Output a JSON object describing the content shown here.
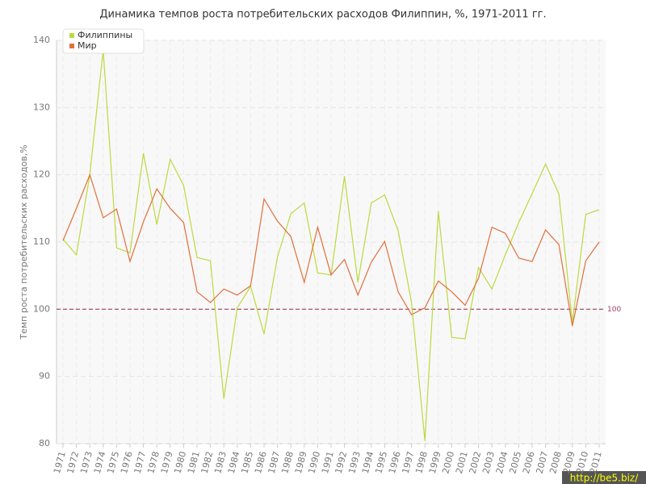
{
  "chart_data": {
    "type": "line",
    "title": "Динамика темпов роста потребительских расходов Филиппин, %, 1971-2011 гг.",
    "y_label": "Темп роста потребительских расходов,%",
    "categories": [
      "1971",
      "1972",
      "1973",
      "1974",
      "1975",
      "1976",
      "1977",
      "1978",
      "1979",
      "1980",
      "1981",
      "1982",
      "1983",
      "1984",
      "1985",
      "1986",
      "1987",
      "1988",
      "1989",
      "1990",
      "1991",
      "1992",
      "1993",
      "1994",
      "1995",
      "1996",
      "1997",
      "1998",
      "1999",
      "2000",
      "2001",
      "2002",
      "2003",
      "2004",
      "2005",
      "2006",
      "2007",
      "2008",
      "2009",
      "2010",
      "2011"
    ],
    "series": [
      {
        "name": "Филиппины",
        "color": "#bcd93f",
        "values": [
          110.4,
          108.1,
          120.0,
          138.6,
          109.1,
          108.4,
          123.2,
          112.6,
          122.3,
          118.4,
          107.7,
          107.2,
          86.7,
          100.2,
          103.4,
          96.3,
          107.8,
          114.2,
          115.8,
          105.4,
          105.1,
          119.8,
          104.0,
          115.8,
          117.0,
          111.7,
          101.0,
          80.4,
          114.6,
          95.8,
          95.6,
          106.2,
          103.0,
          108.1,
          112.9,
          117.2,
          121.6,
          117.1,
          98.0,
          114.1,
          114.8
        ]
      },
      {
        "name": "Мир",
        "color": "#e0703c",
        "values": [
          110.2,
          115.0,
          120.0,
          113.6,
          114.9,
          107.1,
          113.0,
          117.9,
          115.0,
          112.9,
          102.6,
          101.0,
          103.0,
          102.1,
          103.5,
          116.4,
          113.1,
          110.8,
          104.0,
          112.2,
          105.1,
          107.4,
          102.1,
          107.0,
          110.1,
          102.6,
          99.2,
          100.2,
          104.2,
          102.6,
          100.6,
          104.6,
          112.2,
          111.3,
          107.6,
          107.1,
          111.8,
          109.6,
          97.5,
          107.2,
          110.0
        ]
      }
    ],
    "ylim": [
      80,
      140
    ],
    "yticks": [
      80,
      90,
      100,
      110,
      120,
      130,
      140
    ],
    "reference_line": 100,
    "reference_color": "#a0405a",
    "grid": true,
    "legend": "top-left",
    "watermark": "http://be5.biz/"
  }
}
